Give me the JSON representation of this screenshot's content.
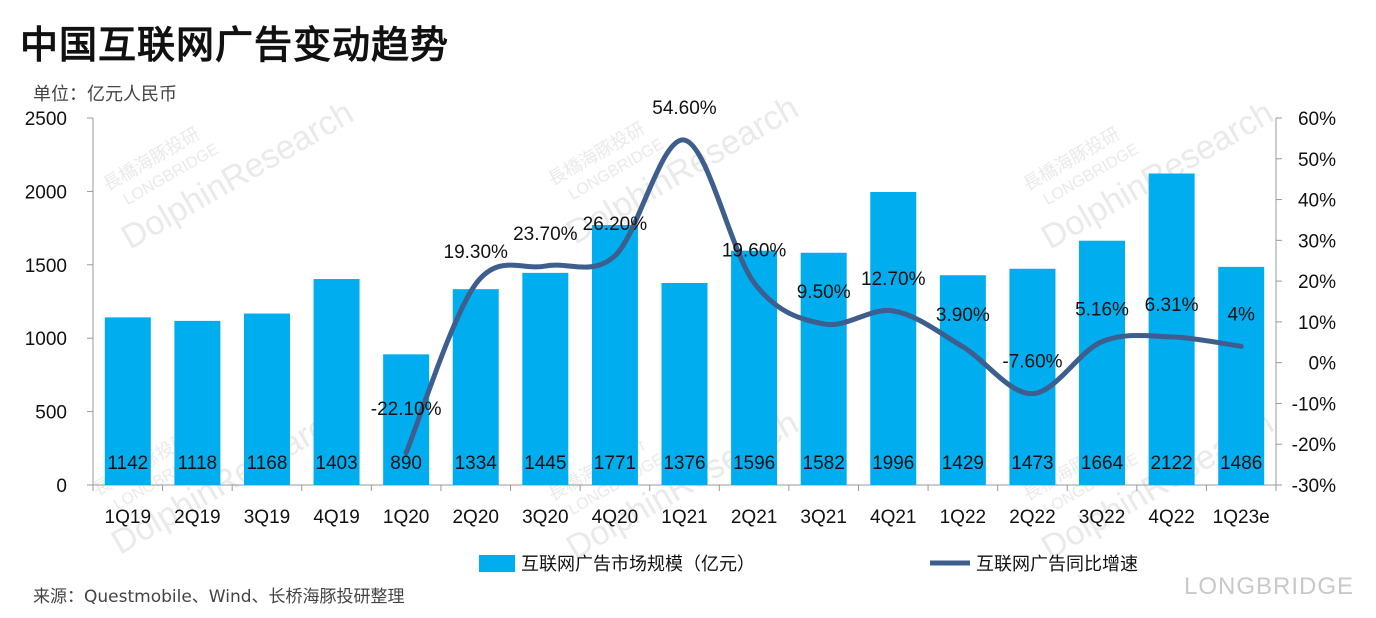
{
  "header": {
    "title": "中国互联网广告变动趋势",
    "unit": "单位：亿元人民币"
  },
  "footer": {
    "source": "来源：Questmobile、Wind、长桥海豚投研整理",
    "logo": "LONGBRIDGE"
  },
  "watermark": {
    "line1": "DolphinResearch",
    "line2": "LONGBRIDGE",
    "line3": "長橋海豚投研"
  },
  "colors": {
    "bar": "#00AEEF",
    "line": "#3E5E8E",
    "axis": "#9a9a9a"
  },
  "chart_data": {
    "type": "bar",
    "categories": [
      "1Q19",
      "2Q19",
      "3Q19",
      "4Q19",
      "1Q20",
      "2Q20",
      "3Q20",
      "4Q20",
      "1Q21",
      "2Q21",
      "3Q21",
      "4Q21",
      "1Q22",
      "2Q22",
      "3Q22",
      "4Q22",
      "1Q23e"
    ],
    "series": [
      {
        "name": "互联网广告市场规模（亿元）",
        "type": "bar",
        "axis": "left",
        "values": [
          1142,
          1118,
          1168,
          1403,
          890,
          1334,
          1445,
          1771,
          1376,
          1596,
          1582,
          1996,
          1429,
          1473,
          1664,
          2122,
          1486
        ],
        "labels": [
          "1142",
          "1118",
          "1168",
          "1403",
          "890",
          "1334",
          "1445",
          "1771",
          "1376",
          "1596",
          "1582",
          "1996",
          "1429",
          "1473",
          "1664",
          "2122",
          "1486"
        ]
      },
      {
        "name": "互联网广告同比增速",
        "type": "line",
        "axis": "right",
        "values": [
          null,
          null,
          null,
          null,
          -22.1,
          19.3,
          23.7,
          26.2,
          54.6,
          19.6,
          9.5,
          12.7,
          3.9,
          -7.6,
          5.16,
          6.31,
          4
        ],
        "labels": [
          "",
          "",
          "",
          "",
          "-22.10%",
          "19.30%",
          "23.70%",
          "26.20%",
          "54.60%",
          "19.60%",
          "9.50%",
          "12.70%",
          "3.90%",
          "-7.60%",
          "5.16%",
          "6.31%",
          "4%"
        ]
      }
    ],
    "left_axis": {
      "min": 0,
      "max": 2500,
      "ticks": [
        "0",
        "500",
        "1000",
        "1500",
        "2000",
        "2500"
      ]
    },
    "right_axis": {
      "min": -30,
      "max": 60,
      "ticks": [
        "-30%",
        "-20%",
        "-10%",
        "0%",
        "10%",
        "20%",
        "30%",
        "40%",
        "50%",
        "60%"
      ]
    },
    "grid": false,
    "legend_position": "bottom"
  }
}
